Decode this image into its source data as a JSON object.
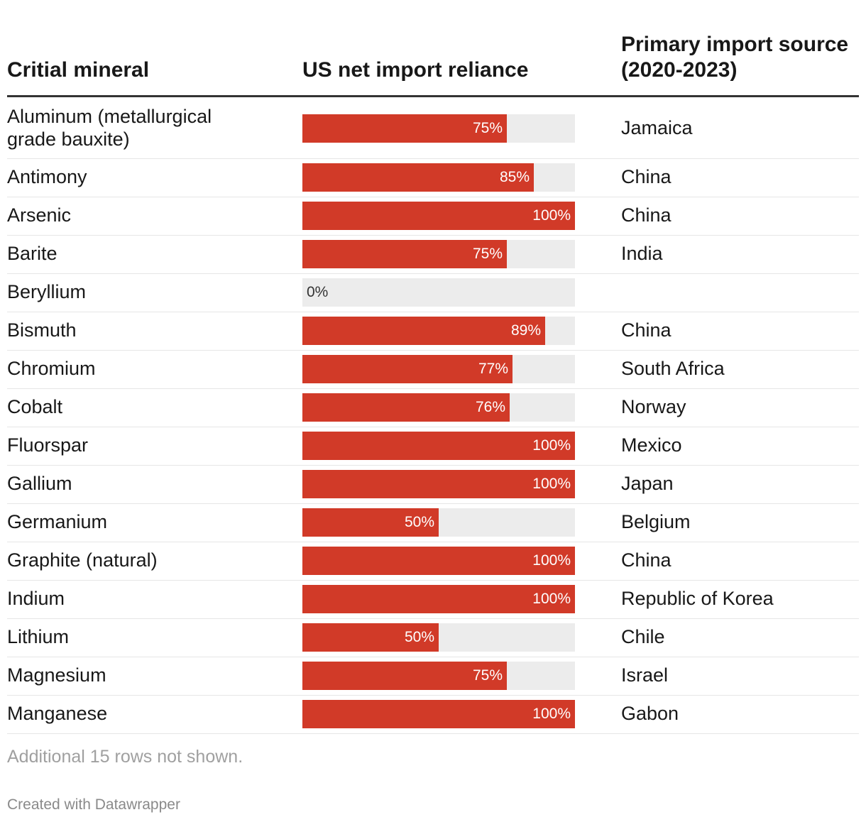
{
  "headers": {
    "mineral": "Critial mineral",
    "reliance": "US net import reliance",
    "source": "Primary import source\n(2020-2023)"
  },
  "chart_data": {
    "type": "table",
    "columns": [
      "Critial mineral",
      "US net import reliance",
      "Primary import source (2020-2023)"
    ],
    "max": 100,
    "bar_color": "#d13a28",
    "track_color": "#ececec",
    "rows": [
      {
        "mineral": "Aluminum (metallurgical\ngrade bauxite)",
        "value": 75,
        "label": "75%",
        "source": "Jamaica"
      },
      {
        "mineral": "Antimony",
        "value": 85,
        "label": "85%",
        "source": "China"
      },
      {
        "mineral": "Arsenic",
        "value": 100,
        "label": "100%",
        "source": "China"
      },
      {
        "mineral": "Barite",
        "value": 75,
        "label": "75%",
        "source": "India"
      },
      {
        "mineral": "Beryllium",
        "value": 0,
        "label": "0%",
        "source": ""
      },
      {
        "mineral": "Bismuth",
        "value": 89,
        "label": "89%",
        "source": "China"
      },
      {
        "mineral": "Chromium",
        "value": 77,
        "label": "77%",
        "source": "South Africa"
      },
      {
        "mineral": "Cobalt",
        "value": 76,
        "label": "76%",
        "source": "Norway"
      },
      {
        "mineral": "Fluorspar",
        "value": 100,
        "label": "100%",
        "source": "Mexico"
      },
      {
        "mineral": "Gallium",
        "value": 100,
        "label": "100%",
        "source": "Japan"
      },
      {
        "mineral": "Germanium",
        "value": 50,
        "label": "50%",
        "source": "Belgium"
      },
      {
        "mineral": "Graphite (natural)",
        "value": 100,
        "label": "100%",
        "source": "China"
      },
      {
        "mineral": "Indium",
        "value": 100,
        "label": "100%",
        "source": "Republic of Korea"
      },
      {
        "mineral": "Lithium",
        "value": 50,
        "label": "50%",
        "source": "Chile"
      },
      {
        "mineral": "Magnesium",
        "value": 75,
        "label": "75%",
        "source": "Israel"
      },
      {
        "mineral": "Manganese",
        "value": 100,
        "label": "100%",
        "source": "Gabon"
      }
    ]
  },
  "footer": {
    "note": "Additional 15 rows not shown.",
    "credit": "Created with Datawrapper"
  }
}
